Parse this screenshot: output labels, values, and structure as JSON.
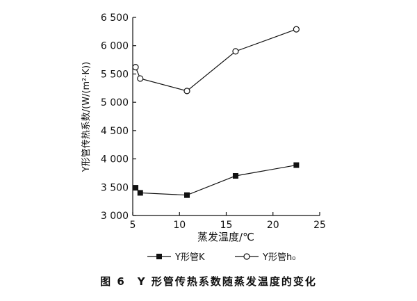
{
  "caption": "图 6　Y 形管传热系数随蒸发温度的变化",
  "chart_data": {
    "type": "line",
    "xlabel": "蒸发温度/℃",
    "ylabel": "Y形管传热系数/(W/(m²·K))",
    "xlim": [
      5,
      25
    ],
    "ylim": [
      3000,
      6500
    ],
    "xticks": [
      5,
      10,
      15,
      20,
      25
    ],
    "yticks": [
      3000,
      3500,
      4000,
      4500,
      5000,
      5500,
      6000,
      6500
    ],
    "ytick_labels": [
      "3 000",
      "3 500",
      "4 000",
      "4 500",
      "5 000",
      "5 500",
      "6 000",
      "6 500"
    ],
    "grid": false,
    "legend_position": "bottom",
    "series": [
      {
        "name": "Y形管K",
        "marker": "filled-square",
        "x": [
          5.3,
          5.8,
          10.8,
          16.0,
          22.5
        ],
        "y": [
          3490,
          3400,
          3360,
          3700,
          3890
        ]
      },
      {
        "name": "Y形管h₀",
        "marker": "open-circle",
        "x": [
          5.3,
          5.8,
          10.8,
          16.0,
          22.5
        ],
        "y": [
          5620,
          5420,
          5200,
          5900,
          6290
        ]
      }
    ]
  }
}
